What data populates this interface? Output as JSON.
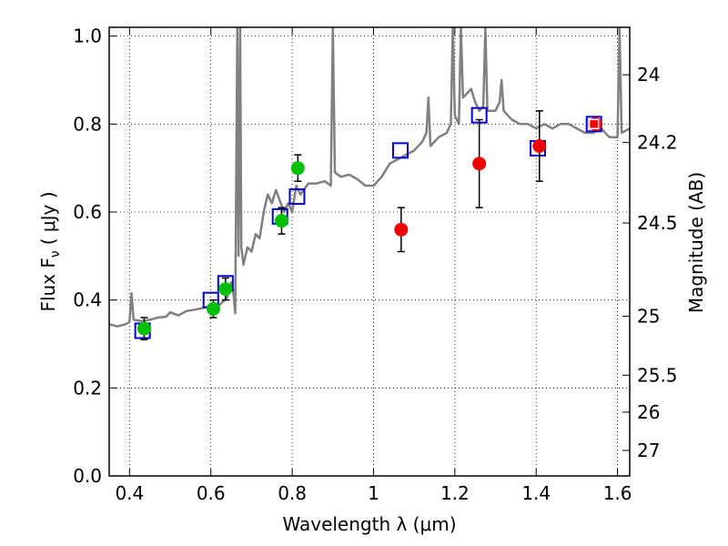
{
  "chart_data": {
    "type": "scatter",
    "xlabel": "Wavelength  λ (μm)",
    "ylabel": "Flux  F",
    "ylabel_sub": "ν",
    "ylabel_unit": "( μJy )",
    "y2label": "Magnitude (AB)",
    "xlim": [
      0.35,
      1.63
    ],
    "ylim": [
      0.0,
      1.02
    ],
    "x_ticks": [
      0.4,
      0.6,
      0.8,
      1.0,
      1.2,
      1.4,
      1.6
    ],
    "x_tick_labels": [
      "0.4",
      "0.6",
      "0.8",
      "1",
      "1.2",
      "1.4",
      "1.6"
    ],
    "y_ticks": [
      0.0,
      0.2,
      0.4,
      0.6,
      0.8,
      1.0
    ],
    "y_tick_labels": [
      "0.0",
      "0.2",
      "0.4",
      "0.6",
      "0.8",
      "1.0"
    ],
    "y2_ticks": [
      {
        "label": "24",
        "flux": 0.912
      },
      {
        "label": "24.2",
        "flux": 0.758
      },
      {
        "label": "24.5",
        "flux": 0.575
      },
      {
        "label": "25",
        "flux": 0.363
      },
      {
        "label": "25.5",
        "flux": 0.229
      },
      {
        "label": "26",
        "flux": 0.145
      },
      {
        "label": "27",
        "flux": 0.058
      }
    ],
    "grid": true,
    "colors": {
      "sed": "#808080",
      "green": "#00c000",
      "red": "#ee0000",
      "square": "#0000cc",
      "square_last": "#ee0000"
    },
    "sed_curve": [
      [
        0.35,
        0.345
      ],
      [
        0.37,
        0.34
      ],
      [
        0.39,
        0.345
      ],
      [
        0.4,
        0.35
      ],
      [
        0.405,
        0.415
      ],
      [
        0.41,
        0.355
      ],
      [
        0.43,
        0.352
      ],
      [
        0.45,
        0.355
      ],
      [
        0.47,
        0.36
      ],
      [
        0.49,
        0.362
      ],
      [
        0.5,
        0.372
      ],
      [
        0.52,
        0.365
      ],
      [
        0.54,
        0.375
      ],
      [
        0.56,
        0.378
      ],
      [
        0.58,
        0.382
      ],
      [
        0.6,
        0.385
      ],
      [
        0.62,
        0.388
      ],
      [
        0.64,
        0.405
      ],
      [
        0.65,
        0.44
      ],
      [
        0.655,
        0.42
      ],
      [
        0.66,
        0.37
      ],
      [
        0.665,
        1.02
      ],
      [
        0.668,
        0.5
      ],
      [
        0.672,
        1.02
      ],
      [
        0.675,
        0.52
      ],
      [
        0.68,
        0.48
      ],
      [
        0.69,
        0.52
      ],
      [
        0.7,
        0.51
      ],
      [
        0.71,
        0.55
      ],
      [
        0.72,
        0.54
      ],
      [
        0.73,
        0.6
      ],
      [
        0.74,
        0.64
      ],
      [
        0.75,
        0.62
      ],
      [
        0.76,
        0.65
      ],
      [
        0.78,
        0.6
      ],
      [
        0.79,
        0.62
      ],
      [
        0.8,
        0.6
      ],
      [
        0.81,
        0.66
      ],
      [
        0.82,
        0.64
      ],
      [
        0.84,
        0.665
      ],
      [
        0.86,
        0.665
      ],
      [
        0.88,
        0.67
      ],
      [
        0.895,
        0.66
      ],
      [
        0.9,
        1.02
      ],
      [
        0.905,
        0.69
      ],
      [
        0.92,
        0.68
      ],
      [
        0.94,
        0.685
      ],
      [
        0.96,
        0.675
      ],
      [
        0.98,
        0.66
      ],
      [
        1.0,
        0.66
      ],
      [
        1.02,
        0.68
      ],
      [
        1.04,
        0.71
      ],
      [
        1.06,
        0.72
      ],
      [
        1.08,
        0.73
      ],
      [
        1.1,
        0.74
      ],
      [
        1.12,
        0.76
      ],
      [
        1.13,
        0.78
      ],
      [
        1.135,
        0.86
      ],
      [
        1.14,
        0.75
      ],
      [
        1.16,
        0.77
      ],
      [
        1.18,
        0.78
      ],
      [
        1.19,
        0.8
      ],
      [
        1.195,
        1.02
      ],
      [
        1.2,
        0.82
      ],
      [
        1.21,
        0.8
      ],
      [
        1.215,
        1.02
      ],
      [
        1.22,
        0.86
      ],
      [
        1.23,
        0.87
      ],
      [
        1.24,
        0.88
      ],
      [
        1.25,
        0.85
      ],
      [
        1.26,
        0.83
      ],
      [
        1.27,
        0.84
      ],
      [
        1.275,
        1.02
      ],
      [
        1.28,
        0.83
      ],
      [
        1.3,
        0.83
      ],
      [
        1.31,
        0.85
      ],
      [
        1.315,
        0.9
      ],
      [
        1.32,
        0.83
      ],
      [
        1.34,
        0.81
      ],
      [
        1.36,
        0.8
      ],
      [
        1.38,
        0.8
      ],
      [
        1.4,
        0.79
      ],
      [
        1.42,
        0.8
      ],
      [
        1.44,
        0.79
      ],
      [
        1.46,
        0.8
      ],
      [
        1.48,
        0.8
      ],
      [
        1.5,
        0.79
      ],
      [
        1.52,
        0.78
      ],
      [
        1.54,
        0.78
      ],
      [
        1.56,
        0.79
      ],
      [
        1.58,
        0.77
      ],
      [
        1.6,
        0.77
      ],
      [
        1.605,
        1.02
      ],
      [
        1.61,
        0.78
      ],
      [
        1.63,
        0.79
      ]
    ],
    "model_squares": [
      {
        "x": 0.432,
        "y": 0.33
      },
      {
        "x": 0.6,
        "y": 0.4
      },
      {
        "x": 0.636,
        "y": 0.438
      },
      {
        "x": 0.77,
        "y": 0.59
      },
      {
        "x": 0.812,
        "y": 0.635
      },
      {
        "x": 1.066,
        "y": 0.74
      },
      {
        "x": 1.26,
        "y": 0.82
      },
      {
        "x": 1.404,
        "y": 0.745
      },
      {
        "x": 1.542,
        "y": 0.8,
        "last": true
      }
    ],
    "green_points": [
      {
        "x": 0.436,
        "y": 0.335,
        "err": 0.025
      },
      {
        "x": 0.606,
        "y": 0.38,
        "err": 0.02
      },
      {
        "x": 0.636,
        "y": 0.425,
        "err": 0.025
      },
      {
        "x": 0.774,
        "y": 0.58,
        "err": 0.03
      },
      {
        "x": 0.814,
        "y": 0.7,
        "err": 0.03
      }
    ],
    "red_points": [
      {
        "x": 1.068,
        "y": 0.56,
        "err": 0.05
      },
      {
        "x": 1.26,
        "y": 0.71,
        "err": 0.1
      },
      {
        "x": 1.408,
        "y": 0.75,
        "err": 0.08
      },
      {
        "x": 1.546,
        "y": 0.8,
        "err": 0.0
      }
    ]
  }
}
